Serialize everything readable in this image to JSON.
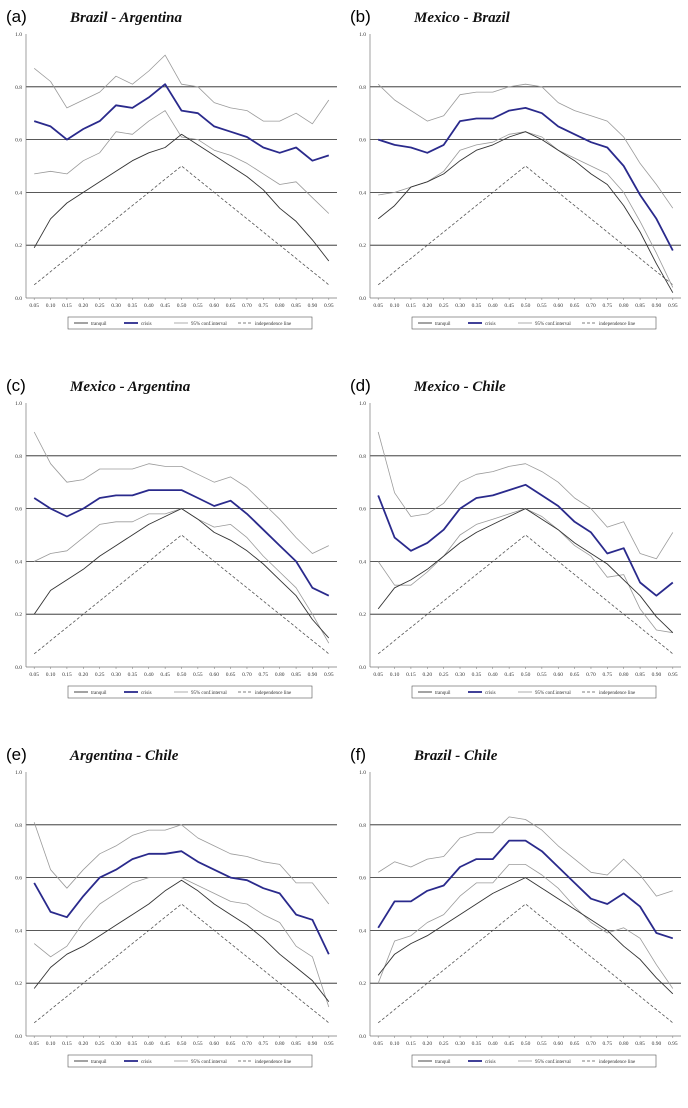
{
  "colors": {
    "tranquil": "#333333",
    "crisis": "#2a2a8c",
    "ci": "#9a9a9a",
    "independence": "#555555"
  },
  "legend_labels": [
    "tranquil",
    "crisis",
    "95% conf.interval",
    "independence line"
  ],
  "x_ticks": [
    "0.05",
    "0.10",
    "0.15",
    "0.20",
    "0.25",
    "0.30",
    "0.35",
    "0.40",
    "0.45",
    "0.50",
    "0.55",
    "0.60",
    "0.65",
    "0.70",
    "0.75",
    "0.80",
    "0.85",
    "0.90",
    "0.95"
  ],
  "y_ticks": [
    "0.0",
    "0.2",
    "0.4",
    "0.6",
    "0.8",
    "1.0"
  ],
  "chart_data": [
    {
      "label": "(a)",
      "title": "Brazil - Argentina",
      "type": "line",
      "x": [
        0.05,
        0.1,
        0.15,
        0.2,
        0.25,
        0.3,
        0.35,
        0.4,
        0.45,
        0.5,
        0.55,
        0.6,
        0.65,
        0.7,
        0.75,
        0.8,
        0.85,
        0.9,
        0.95
      ],
      "ylim": [
        0,
        1
      ],
      "series": [
        {
          "name": "tranquil",
          "values": [
            0.19,
            0.3,
            0.36,
            0.4,
            0.44,
            0.48,
            0.52,
            0.55,
            0.57,
            0.62,
            0.58,
            0.54,
            0.5,
            0.46,
            0.41,
            0.34,
            0.29,
            0.22,
            0.14
          ]
        },
        {
          "name": "crisis",
          "values": [
            0.67,
            0.65,
            0.6,
            0.64,
            0.67,
            0.73,
            0.72,
            0.76,
            0.81,
            0.71,
            0.7,
            0.65,
            0.63,
            0.61,
            0.57,
            0.55,
            0.57,
            0.52,
            0.54
          ]
        },
        {
          "name": "95% conf.interval",
          "values": [
            0.87,
            0.82,
            0.72,
            0.75,
            0.78,
            0.84,
            0.81,
            0.86,
            0.92,
            0.81,
            0.8,
            0.74,
            0.72,
            0.71,
            0.67,
            0.67,
            0.7,
            0.66,
            0.75
          ]
        },
        {
          "name": "95% conf.interval",
          "values": [
            0.47,
            0.48,
            0.47,
            0.52,
            0.55,
            0.63,
            0.62,
            0.67,
            0.71,
            0.61,
            0.6,
            0.56,
            0.54,
            0.51,
            0.47,
            0.43,
            0.44,
            0.38,
            0.32
          ]
        },
        {
          "name": "independence line",
          "values": [
            0.05,
            0.1,
            0.15,
            0.2,
            0.25,
            0.3,
            0.35,
            0.4,
            0.45,
            0.5,
            0.45,
            0.4,
            0.35,
            0.3,
            0.25,
            0.2,
            0.15,
            0.1,
            0.05
          ]
        }
      ]
    },
    {
      "label": "(b)",
      "title": "Mexico - Brazil",
      "type": "line",
      "x": [
        0.05,
        0.1,
        0.15,
        0.2,
        0.25,
        0.3,
        0.35,
        0.4,
        0.45,
        0.5,
        0.55,
        0.6,
        0.65,
        0.7,
        0.75,
        0.8,
        0.85,
        0.9,
        0.95
      ],
      "ylim": [
        0,
        1
      ],
      "series": [
        {
          "name": "tranquil",
          "values": [
            0.3,
            0.35,
            0.42,
            0.44,
            0.47,
            0.52,
            0.56,
            0.58,
            0.61,
            0.63,
            0.6,
            0.56,
            0.52,
            0.47,
            0.43,
            0.35,
            0.25,
            0.13,
            0.02
          ]
        },
        {
          "name": "crisis",
          "values": [
            0.6,
            0.58,
            0.57,
            0.55,
            0.58,
            0.67,
            0.68,
            0.68,
            0.71,
            0.72,
            0.7,
            0.65,
            0.62,
            0.59,
            0.57,
            0.5,
            0.39,
            0.3,
            0.18
          ]
        },
        {
          "name": "95% conf.interval",
          "values": [
            0.81,
            0.75,
            0.71,
            0.67,
            0.69,
            0.77,
            0.78,
            0.78,
            0.8,
            0.81,
            0.8,
            0.74,
            0.71,
            0.69,
            0.67,
            0.61,
            0.51,
            0.43,
            0.34
          ]
        },
        {
          "name": "95% conf.interval",
          "values": [
            0.39,
            0.4,
            0.42,
            0.44,
            0.48,
            0.56,
            0.58,
            0.59,
            0.62,
            0.63,
            0.61,
            0.56,
            0.53,
            0.5,
            0.47,
            0.4,
            0.29,
            0.17,
            0.04
          ]
        },
        {
          "name": "independence line",
          "values": [
            0.05,
            0.1,
            0.15,
            0.2,
            0.25,
            0.3,
            0.35,
            0.4,
            0.45,
            0.5,
            0.45,
            0.4,
            0.35,
            0.3,
            0.25,
            0.2,
            0.15,
            0.1,
            0.05
          ]
        }
      ]
    },
    {
      "label": "(c)",
      "title": "Mexico - Argentina",
      "type": "line",
      "x": [
        0.05,
        0.1,
        0.15,
        0.2,
        0.25,
        0.3,
        0.35,
        0.4,
        0.45,
        0.5,
        0.55,
        0.6,
        0.65,
        0.7,
        0.75,
        0.8,
        0.85,
        0.9,
        0.95
      ],
      "ylim": [
        0,
        1
      ],
      "series": [
        {
          "name": "tranquil",
          "values": [
            0.2,
            0.29,
            0.33,
            0.37,
            0.42,
            0.46,
            0.5,
            0.54,
            0.57,
            0.6,
            0.56,
            0.51,
            0.48,
            0.44,
            0.39,
            0.33,
            0.27,
            0.18,
            0.11
          ]
        },
        {
          "name": "crisis",
          "values": [
            0.64,
            0.6,
            0.57,
            0.6,
            0.64,
            0.65,
            0.65,
            0.67,
            0.67,
            0.67,
            0.64,
            0.61,
            0.63,
            0.58,
            0.52,
            0.46,
            0.4,
            0.3,
            0.27
          ]
        },
        {
          "name": "95% conf.interval",
          "values": [
            0.89,
            0.77,
            0.7,
            0.71,
            0.75,
            0.75,
            0.75,
            0.77,
            0.76,
            0.76,
            0.73,
            0.7,
            0.72,
            0.68,
            0.62,
            0.56,
            0.49,
            0.43,
            0.46
          ]
        },
        {
          "name": "95% conf.interval",
          "values": [
            0.4,
            0.43,
            0.44,
            0.49,
            0.54,
            0.55,
            0.55,
            0.58,
            0.58,
            0.6,
            0.56,
            0.53,
            0.54,
            0.49,
            0.42,
            0.36,
            0.3,
            0.2,
            0.09
          ]
        },
        {
          "name": "independence line",
          "values": [
            0.05,
            0.1,
            0.15,
            0.2,
            0.25,
            0.3,
            0.35,
            0.4,
            0.45,
            0.5,
            0.45,
            0.4,
            0.35,
            0.3,
            0.25,
            0.2,
            0.15,
            0.1,
            0.05
          ]
        }
      ]
    },
    {
      "label": "(d)",
      "title": "Mexico - Chile",
      "type": "line",
      "x": [
        0.05,
        0.1,
        0.15,
        0.2,
        0.25,
        0.3,
        0.35,
        0.4,
        0.45,
        0.5,
        0.55,
        0.6,
        0.65,
        0.7,
        0.75,
        0.8,
        0.85,
        0.9,
        0.95
      ],
      "ylim": [
        0,
        1
      ],
      "series": [
        {
          "name": "tranquil",
          "values": [
            0.22,
            0.3,
            0.33,
            0.37,
            0.42,
            0.47,
            0.51,
            0.54,
            0.57,
            0.6,
            0.56,
            0.52,
            0.47,
            0.43,
            0.39,
            0.33,
            0.27,
            0.19,
            0.13
          ]
        },
        {
          "name": "crisis",
          "values": [
            0.65,
            0.49,
            0.44,
            0.47,
            0.52,
            0.6,
            0.64,
            0.65,
            0.67,
            0.69,
            0.65,
            0.61,
            0.55,
            0.51,
            0.43,
            0.45,
            0.32,
            0.27,
            0.32
          ]
        },
        {
          "name": "95% conf.interval",
          "values": [
            0.89,
            0.66,
            0.57,
            0.58,
            0.62,
            0.7,
            0.73,
            0.74,
            0.76,
            0.77,
            0.74,
            0.7,
            0.64,
            0.6,
            0.53,
            0.55,
            0.43,
            0.41,
            0.51
          ]
        },
        {
          "name": "95% conf.interval",
          "values": [
            0.4,
            0.31,
            0.31,
            0.36,
            0.42,
            0.5,
            0.54,
            0.56,
            0.58,
            0.6,
            0.57,
            0.52,
            0.46,
            0.42,
            0.34,
            0.35,
            0.22,
            0.14,
            0.13
          ]
        },
        {
          "name": "independence line",
          "values": [
            0.05,
            0.1,
            0.15,
            0.2,
            0.25,
            0.3,
            0.35,
            0.4,
            0.45,
            0.5,
            0.45,
            0.4,
            0.35,
            0.3,
            0.25,
            0.2,
            0.15,
            0.1,
            0.05
          ]
        }
      ]
    },
    {
      "label": "(e)",
      "title": "Argentina - Chile",
      "type": "line",
      "x": [
        0.05,
        0.1,
        0.15,
        0.2,
        0.25,
        0.3,
        0.35,
        0.4,
        0.45,
        0.5,
        0.55,
        0.6,
        0.65,
        0.7,
        0.75,
        0.8,
        0.85,
        0.9,
        0.95
      ],
      "ylim": [
        0,
        1
      ],
      "series": [
        {
          "name": "tranquil",
          "values": [
            0.18,
            0.26,
            0.31,
            0.34,
            0.38,
            0.42,
            0.46,
            0.5,
            0.55,
            0.59,
            0.55,
            0.5,
            0.46,
            0.42,
            0.37,
            0.31,
            0.26,
            0.21,
            0.13
          ]
        },
        {
          "name": "crisis",
          "values": [
            0.58,
            0.47,
            0.45,
            0.53,
            0.6,
            0.63,
            0.67,
            0.69,
            0.69,
            0.7,
            0.66,
            0.63,
            0.6,
            0.59,
            0.56,
            0.54,
            0.46,
            0.44,
            0.31
          ]
        },
        {
          "name": "95% conf.interval",
          "values": [
            0.81,
            0.63,
            0.56,
            0.63,
            0.69,
            0.72,
            0.76,
            0.78,
            0.78,
            0.8,
            0.75,
            0.72,
            0.69,
            0.68,
            0.66,
            0.65,
            0.58,
            0.58,
            0.5
          ]
        },
        {
          "name": "95% conf.interval",
          "values": [
            0.35,
            0.3,
            0.34,
            0.43,
            0.5,
            0.54,
            0.58,
            0.6,
            0.6,
            0.6,
            0.57,
            0.54,
            0.51,
            0.5,
            0.46,
            0.43,
            0.34,
            0.3,
            0.11
          ]
        },
        {
          "name": "independence line",
          "values": [
            0.05,
            0.1,
            0.15,
            0.2,
            0.25,
            0.3,
            0.35,
            0.4,
            0.45,
            0.5,
            0.45,
            0.4,
            0.35,
            0.3,
            0.25,
            0.2,
            0.15,
            0.1,
            0.05
          ]
        }
      ]
    },
    {
      "label": "(f)",
      "title": "Brazil - Chile",
      "type": "line",
      "x": [
        0.05,
        0.1,
        0.15,
        0.2,
        0.25,
        0.3,
        0.35,
        0.4,
        0.45,
        0.5,
        0.55,
        0.6,
        0.65,
        0.7,
        0.75,
        0.8,
        0.85,
        0.9,
        0.95
      ],
      "ylim": [
        0,
        1
      ],
      "series": [
        {
          "name": "tranquil",
          "values": [
            0.23,
            0.31,
            0.35,
            0.38,
            0.42,
            0.46,
            0.5,
            0.54,
            0.57,
            0.6,
            0.56,
            0.52,
            0.48,
            0.44,
            0.4,
            0.34,
            0.29,
            0.22,
            0.16
          ]
        },
        {
          "name": "crisis",
          "values": [
            0.41,
            0.51,
            0.51,
            0.55,
            0.57,
            0.64,
            0.67,
            0.67,
            0.74,
            0.74,
            0.7,
            0.64,
            0.58,
            0.52,
            0.5,
            0.54,
            0.49,
            0.39,
            0.37
          ]
        },
        {
          "name": "95% conf.interval",
          "values": [
            0.62,
            0.66,
            0.64,
            0.67,
            0.68,
            0.75,
            0.77,
            0.77,
            0.83,
            0.82,
            0.78,
            0.72,
            0.67,
            0.62,
            0.61,
            0.67,
            0.61,
            0.53,
            0.55
          ]
        },
        {
          "name": "95% conf.interval",
          "values": [
            0.2,
            0.36,
            0.38,
            0.43,
            0.46,
            0.53,
            0.58,
            0.58,
            0.65,
            0.65,
            0.61,
            0.56,
            0.49,
            0.43,
            0.39,
            0.41,
            0.37,
            0.27,
            0.18
          ]
        },
        {
          "name": "independence line",
          "values": [
            0.05,
            0.1,
            0.15,
            0.2,
            0.25,
            0.3,
            0.35,
            0.4,
            0.45,
            0.5,
            0.45,
            0.4,
            0.35,
            0.3,
            0.25,
            0.2,
            0.15,
            0.1,
            0.05
          ]
        }
      ]
    }
  ]
}
